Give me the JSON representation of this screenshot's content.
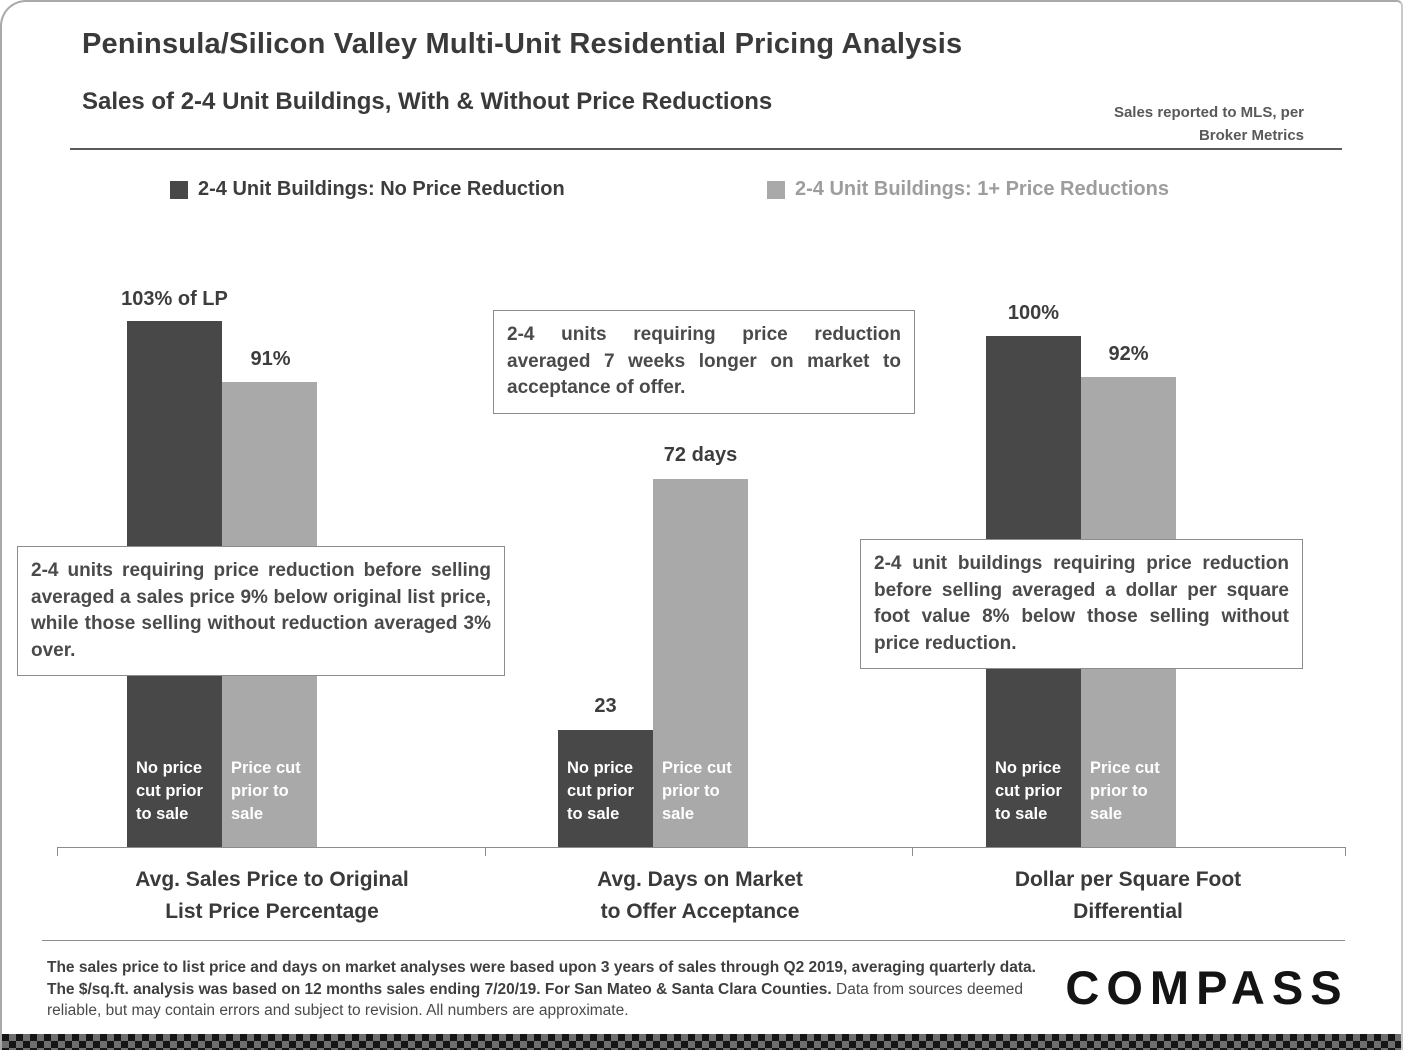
{
  "header": {
    "title": "Peninsula/Silicon Valley Multi-Unit Residential Pricing Analysis",
    "subtitle": "Sales of 2-4 Unit Buildings, With & Without Price Reductions",
    "source_note": "Sales reported to MLS, per Broker Metrics"
  },
  "chart_data": {
    "type": "bar",
    "title": "Sales of 2-4 Unit Buildings, With & Without Price Reductions",
    "categories": [
      "Avg. Sales Price to Original\nList Price Percentage",
      "Avg. Days on Market\nto Offer Acceptance",
      "Dollar per Square Foot\nDifferential"
    ],
    "series": [
      {
        "name": "2-4 Unit Buildings: No Price Reduction",
        "color": "#484848",
        "values": [
          103,
          23,
          100
        ],
        "value_labels": [
          "103% of LP",
          "23",
          "100%"
        ],
        "bar_caption": "No price cut prior to sale"
      },
      {
        "name": "2-4 Unit Buildings: 1+ Price Reductions",
        "color": "#a9a9a9",
        "values": [
          91,
          72,
          92
        ],
        "value_labels": [
          "91%",
          "72 days",
          "92%"
        ],
        "bar_caption": "Price cut prior to sale"
      }
    ],
    "grid": false,
    "legend_position": "top",
    "value_axis_visible": false
  },
  "annotations": [
    {
      "text": "2-4 units requiring price reduction before selling averaged a sales price 9% below original list price, while those selling without reduction averaged 3% over."
    },
    {
      "text": "2-4 units requiring price reduction averaged 7 weeks longer on market to acceptance of offer."
    },
    {
      "text": "2-4 unit buildings requiring price reduction before selling averaged a dollar per square foot value 8% below those selling without price reduction."
    }
  ],
  "footer": {
    "disclaimer_bold": "The sales price to list price and days on market analyses were based upon 3 years of sales through Q2 2019, averaging quarterly data. The $/sq.ft. analysis was based on 12 months sales ending 7/20/19.  For San Mateo & Santa Clara Counties.",
    "disclaimer_regular": " Data from sources deemed reliable, but may contain errors and subject to revision. All numbers are approximate.",
    "brand": "COMPASS"
  }
}
